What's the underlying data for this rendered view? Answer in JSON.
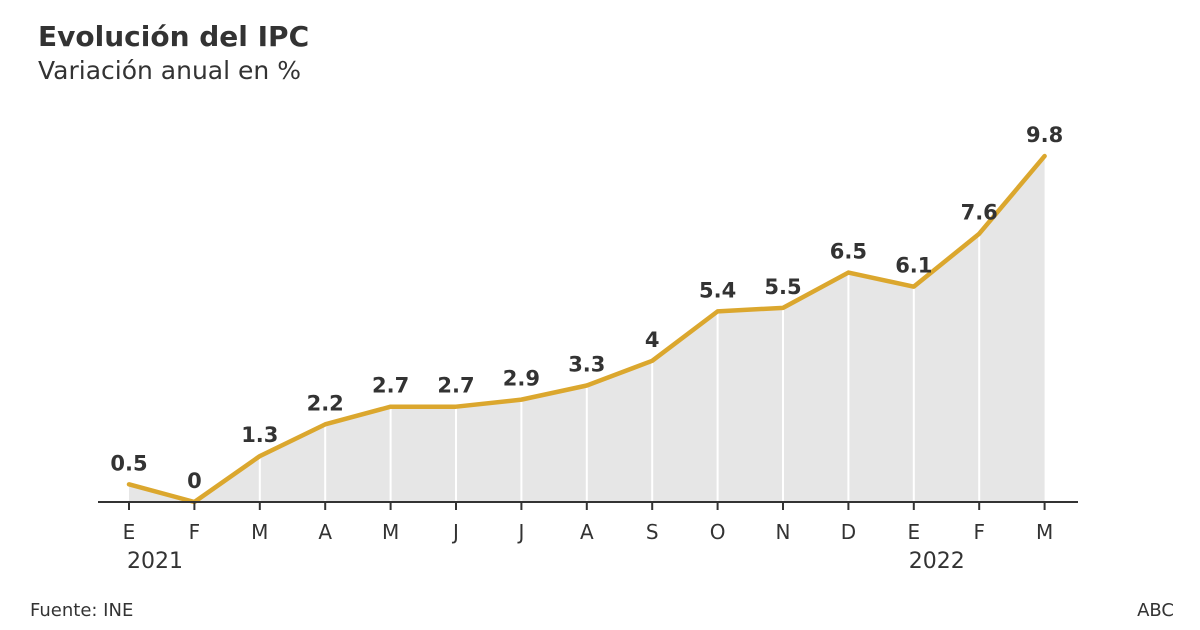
{
  "header": {
    "title": "Evolución del IPC",
    "subtitle": "Variación anual en %"
  },
  "footer": {
    "source": "Fuente: INE",
    "brand": "ABC"
  },
  "colors": {
    "line": "#DBA72E",
    "area": "#E6E6E6",
    "axis": "#333333",
    "text": "#333333"
  },
  "chart_data": {
    "type": "area",
    "categories": [
      "E",
      "F",
      "M",
      "A",
      "M",
      "J",
      "J",
      "A",
      "S",
      "O",
      "N",
      "D",
      "E",
      "F",
      "M"
    ],
    "year_labels": [
      {
        "index": 0,
        "label": "2021"
      },
      {
        "index": 12,
        "label": "2022"
      }
    ],
    "values": [
      0.5,
      0,
      1.3,
      2.2,
      2.7,
      2.7,
      2.9,
      3.3,
      4,
      5.4,
      5.5,
      6.5,
      6.1,
      7.6,
      9.8
    ],
    "value_labels": [
      "0.5",
      "0",
      "1.3",
      "2.2",
      "2.7",
      "2.7",
      "2.9",
      "3.3",
      "4",
      "5.4",
      "5.5",
      "6.5",
      "6.1",
      "7.6",
      "9.8"
    ],
    "ylim": [
      0,
      9.8
    ],
    "grid": "vertical lines at each month",
    "legend": "none"
  }
}
